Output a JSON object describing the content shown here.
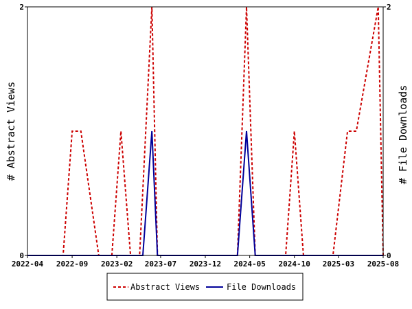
{
  "chart_data": {
    "type": "line",
    "title": "",
    "ylabel_left": "# Abstract Views",
    "ylabel_right": "# File Downloads",
    "x_ticks": [
      "2022-04",
      "2022-09",
      "2023-02",
      "2023-07",
      "2023-12",
      "2024-05",
      "2024-10",
      "2025-03",
      "2025-08"
    ],
    "x_range": [
      "2022-04",
      "2025-08"
    ],
    "ylim_left": [
      0,
      2
    ],
    "ylim_right": [
      0,
      2
    ],
    "y_ticks_left": [
      "0",
      "2"
    ],
    "y_ticks_right": [
      "0",
      "2"
    ],
    "grid": false,
    "legend_position": "bottom",
    "series": [
      {
        "name": "Abstract Views",
        "color": "#cc0000",
        "style": "dashed",
        "points": [
          [
            "2022-04-01",
            0
          ],
          [
            "2022-08-01",
            0
          ],
          [
            "2022-09-01",
            1
          ],
          [
            "2022-10-01",
            1
          ],
          [
            "2022-12-01",
            0
          ],
          [
            "2023-01-15",
            0
          ],
          [
            "2023-02-15",
            1
          ],
          [
            "2023-03-20",
            0
          ],
          [
            "2023-04-20",
            0
          ],
          [
            "2023-06-01",
            2
          ],
          [
            "2023-06-20",
            0
          ],
          [
            "2024-03-20",
            0
          ],
          [
            "2024-04-20",
            2
          ],
          [
            "2024-05-20",
            0
          ],
          [
            "2024-09-01",
            0
          ],
          [
            "2024-10-01",
            1
          ],
          [
            "2024-11-01",
            0
          ],
          [
            "2025-02-10",
            0
          ],
          [
            "2025-04-01",
            1
          ],
          [
            "2025-05-01",
            1
          ],
          [
            "2025-07-15",
            2
          ],
          [
            "2025-08-01",
            0
          ]
        ]
      },
      {
        "name": "File Downloads",
        "color": "#000099",
        "style": "solid",
        "points": [
          [
            "2022-04-01",
            0
          ],
          [
            "2023-05-01",
            0
          ],
          [
            "2023-06-01",
            1
          ],
          [
            "2023-06-20",
            0
          ],
          [
            "2024-03-20",
            0
          ],
          [
            "2024-04-20",
            1
          ],
          [
            "2024-05-20",
            0
          ],
          [
            "2025-08-01",
            0
          ]
        ]
      }
    ]
  }
}
